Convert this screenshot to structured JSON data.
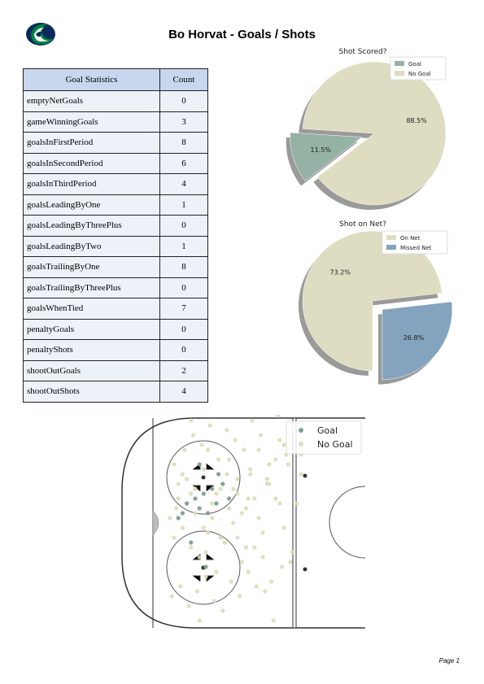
{
  "page": {
    "title": "Bo Horvat - Goals / Shots",
    "page_number": "Page 1"
  },
  "table": {
    "headers": [
      "Goal Statistics",
      "Count"
    ],
    "rows": [
      {
        "stat": "emptyNetGoals",
        "count": "0"
      },
      {
        "stat": "gameWinningGoals",
        "count": "3"
      },
      {
        "stat": "goalsInFirstPeriod",
        "count": "8"
      },
      {
        "stat": "goalsInSecondPeriod",
        "count": "6"
      },
      {
        "stat": "goalsInThirdPeriod",
        "count": "4"
      },
      {
        "stat": "goalsLeadingByOne",
        "count": "1"
      },
      {
        "stat": "goalsLeadingByThreePlus",
        "count": "0"
      },
      {
        "stat": "goalsLeadingByTwo",
        "count": "1"
      },
      {
        "stat": "goalsTrailingByOne",
        "count": "8"
      },
      {
        "stat": "goalsTrailingByThreePlus",
        "count": "0"
      },
      {
        "stat": "goalsWhenTied",
        "count": "7"
      },
      {
        "stat": "penaltyGoals",
        "count": "0"
      },
      {
        "stat": "penaltyShots",
        "count": "0"
      },
      {
        "stat": "shootOutGoals",
        "count": "2"
      },
      {
        "stat": "shootOutShots",
        "count": "4"
      }
    ]
  },
  "chart_data": [
    {
      "type": "pie",
      "title": "Shot Scored?",
      "labels": [
        "Goal",
        "No Goal"
      ],
      "values": [
        11.5,
        88.5
      ],
      "value_labels": [
        "11.5%",
        "88.5%"
      ],
      "colors": [
        "#96b2a4",
        "#dedcc1"
      ],
      "exploded": "Goal",
      "legend": "top-right"
    },
    {
      "type": "pie",
      "title": "Shot on Net?",
      "labels": [
        "On Net",
        "Missed Net"
      ],
      "values": [
        73.2,
        26.8
      ],
      "value_labels": [
        "73.2%",
        "26.8%"
      ],
      "colors": [
        "#dedcc1",
        "#83a3be"
      ],
      "exploded": "Missed Net",
      "legend": "top-right"
    },
    {
      "type": "scatter",
      "series": [
        {
          "name": "Goal",
          "color": "#7f9f8f",
          "x": [
            14,
            16,
            20,
            22,
            24,
            26,
            28,
            30,
            33,
            36,
            18,
            25,
            31,
            12,
            22
          ],
          "y": [
            -4,
            -8,
            -10,
            -6,
            -12,
            -4,
            -14,
            -8,
            -16,
            -10,
            8,
            18,
            -20,
            -2,
            -24
          ]
        },
        {
          "name": "No Goal",
          "color": "#dedcb9",
          "x": [
            8,
            10,
            12,
            14,
            16,
            18,
            20,
            22,
            24,
            26,
            28,
            30,
            32,
            34,
            36,
            38,
            40,
            42,
            44,
            46,
            48,
            50,
            52,
            54,
            56,
            58,
            60,
            62,
            64,
            66,
            68,
            70,
            9,
            13,
            17,
            21,
            25,
            29,
            33,
            37,
            41,
            45,
            49,
            53,
            57,
            61,
            65,
            15,
            19,
            23,
            27,
            31,
            35,
            39,
            43,
            47,
            51,
            55,
            59,
            63,
            11,
            30,
            40,
            50,
            60,
            20,
            35,
            45,
            55,
            25,
            12,
            14,
            16,
            18,
            10,
            24,
            28,
            32,
            36,
            44,
            48,
            52,
            26,
            34,
            42,
            38,
            46,
            54,
            58,
            62,
            66,
            70,
            22,
            30,
            18,
            40
          ],
          "y": [
            -2,
            6,
            -10,
            2,
            -18,
            10,
            -4,
            14,
            -22,
            4,
            -8,
            20,
            -14,
            8,
            -26,
            0,
            -12,
            16,
            -6,
            -20,
            10,
            -30,
            4,
            -16,
            24,
            -10,
            -34,
            2,
            -24,
            12,
            -8,
            -28,
            30,
            26,
            34,
            28,
            22,
            32,
            36,
            24,
            30,
            20,
            26,
            28,
            40,
            18,
            16,
            -30,
            -36,
            -32,
            -40,
            -26,
            -38,
            -34,
            -30,
            -42,
            -36,
            -24,
            -44,
            -28,
            -6,
            -12,
            -18,
            -2,
            -8,
            -14,
            -20,
            -10,
            -16,
            12,
            -16,
            -20,
            -8,
            -12,
            -24,
            2,
            -2,
            6,
            -6,
            10,
            -10,
            14,
            -30,
            8,
            -4,
            -14,
            -22,
            -18,
            -26,
            -32,
            -38,
            -20,
            40,
            -46,
            -42,
            6
          ],
          "marker_note": ""
        }
      ],
      "legend": "top-right",
      "xlim": [
        0,
        100
      ],
      "ylim": [
        -42.5,
        42.5
      ]
    }
  ]
}
